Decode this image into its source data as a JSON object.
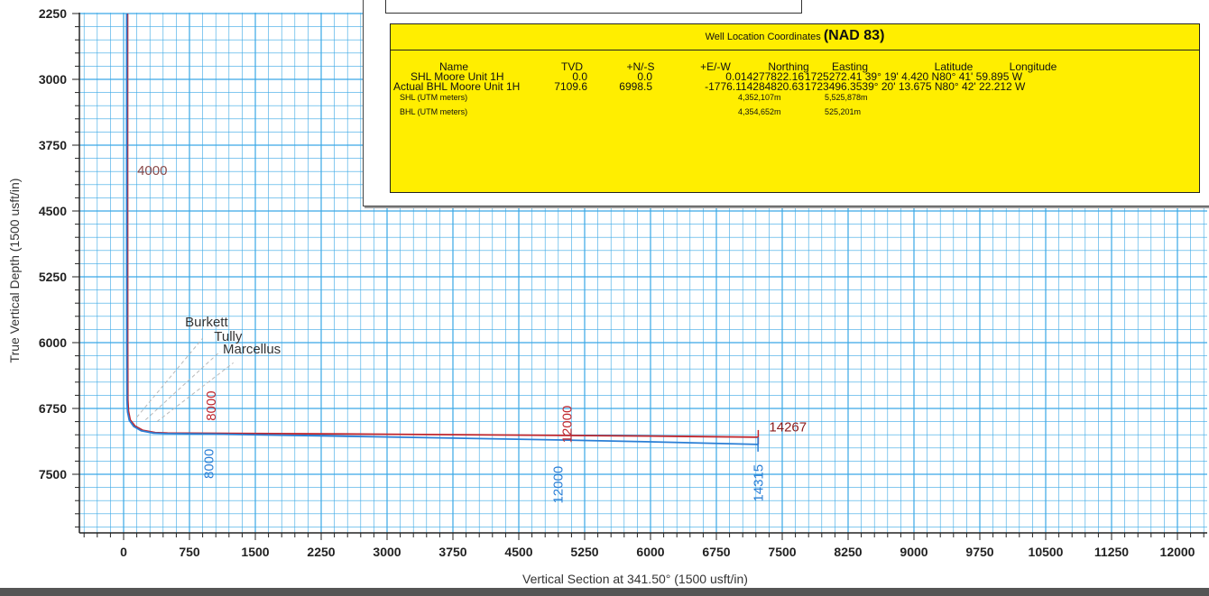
{
  "chart_data": {
    "type": "line",
    "xlabel": "Vertical Section at 341.50° (1500 usft/in)",
    "ylabel": "True Vertical Depth (1500 usft/in)",
    "xlim": [
      -500,
      12000
    ],
    "ylim": [
      2250,
      8250
    ],
    "y_inverted": true,
    "x_ticks": [
      0,
      750,
      1500,
      2250,
      3000,
      3750,
      4500,
      5250,
      6000,
      6750,
      7500,
      8250,
      9000,
      9750,
      10500,
      11250,
      12000
    ],
    "y_ticks": [
      2250,
      3000,
      3750,
      4500,
      5250,
      6000,
      6750,
      7500
    ],
    "grid": true,
    "grid_color": "#3aa8e6",
    "series": [
      {
        "color": "#c0262d",
        "x": [
          45,
          45,
          46,
          48,
          55,
          75,
          130,
          220,
          360,
          500,
          1000,
          3000,
          5000,
          6000,
          7227
        ],
        "y": [
          2250,
          4000,
          6000,
          6650,
          6780,
          6880,
          6950,
          7000,
          7025,
          7030,
          7033,
          7044,
          7057,
          7064,
          7078
        ]
      },
      {
        "color": "#2b7fd6",
        "x": [
          35,
          35,
          36,
          38,
          45,
          65,
          115,
          200,
          340,
          470,
          1000,
          3000,
          5000,
          6000,
          7224
        ],
        "y": [
          2250,
          4000,
          6000,
          6660,
          6790,
          6885,
          6955,
          7005,
          7030,
          7037,
          7042,
          7075,
          7110,
          7130,
          7160
        ]
      }
    ],
    "depth_labels": [
      {
        "text": "4000",
        "x": 155,
        "y": 4090,
        "color": "#8a4a4a",
        "rotated": false
      },
      {
        "text": "8000",
        "x": 1050,
        "y": 6720,
        "color": "#c0262d",
        "rotated": true
      },
      {
        "text": "12000",
        "x": 5100,
        "y": 6930,
        "color": "#c0262d",
        "rotated": true
      },
      {
        "text": "14267",
        "x": 7350,
        "y": 7010,
        "color": "#8a1a1a",
        "rotated": false
      },
      {
        "text": "8000",
        "x": 1020,
        "y": 7380,
        "color": "#2b7fd6",
        "rotated": true
      },
      {
        "text": "12000",
        "x": 5000,
        "y": 7620,
        "color": "#2b7fd6",
        "rotated": true
      },
      {
        "text": "14315",
        "x": 7280,
        "y": 7600,
        "color": "#2b7fd6",
        "rotated": true
      }
    ],
    "formations": [
      {
        "name": "Burkett",
        "label_x": 700,
        "label_y": 5815,
        "line_from": [
          150,
          6850
        ],
        "line_to": [
          900,
          5950
        ]
      },
      {
        "name": "Tully",
        "label_x": 1030,
        "label_y": 5980,
        "line_from": [
          250,
          6880
        ],
        "line_to": [
          1100,
          6100
        ]
      },
      {
        "name": "Marcellus",
        "label_x": 1130,
        "label_y": 6125,
        "line_from": [
          380,
          6900
        ],
        "line_to": [
          1250,
          6230
        ]
      }
    ]
  },
  "coordinates_table": {
    "title_small": "Well Location Coordinates",
    "title_bold": "(NAD 83)",
    "headers": {
      "name": "Name",
      "tvd": "TVD",
      "ns": "+N/-S",
      "ew": "+E/-W",
      "northing": "Northing",
      "easting": "Easting",
      "latitude": "Latitude",
      "longitude": "Longitude"
    },
    "rows": [
      {
        "name": "SHL Moore Unit 1H",
        "tvd": "0.0",
        "ns": "0.0",
        "ew_northing": "0.014277822.16",
        "easting_lat": "1725272.41 39° 19' 4.420 N80° 41' 59.895 W"
      },
      {
        "name": "Actual BHL Moore Unit 1H",
        "tvd": "7109.6",
        "ns": "6998.5",
        "ew_northing": "-1776.114284820.63",
        "easting_lat": "1723496.3539° 20' 13.675 N80° 42' 22.212 W"
      }
    ],
    "utm_rows": [
      {
        "name": "SHL (UTM meters)",
        "northing": "4,352,107m",
        "easting": "5,525,878m"
      },
      {
        "name": "BHL (UTM meters)",
        "northing": "4,354,652m",
        "easting": "525,201m"
      }
    ],
    "background": "#ffee00"
  }
}
